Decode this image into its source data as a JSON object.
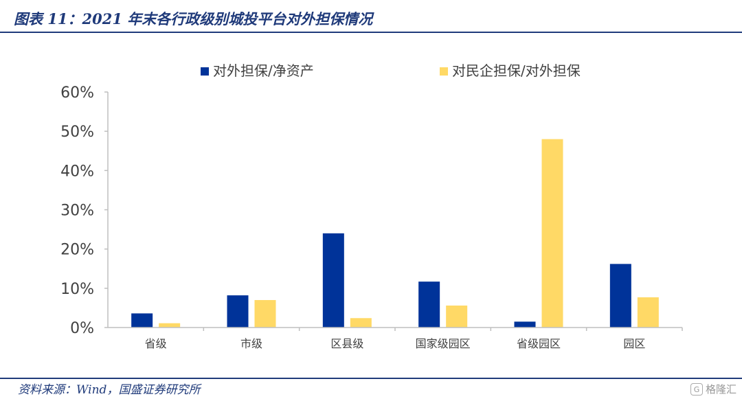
{
  "header": {
    "title": "图表 11：2021 年末各行政级别城投平台对外担保情况"
  },
  "footer": {
    "source": "资料来源：Wind，国盛证券研究所",
    "watermark": "格隆汇",
    "watermark_logo": "G"
  },
  "colors": {
    "series_1": "#003399",
    "series_2": "#ffd966",
    "axis": "#bfbfbf",
    "rule": "#1f3a7a"
  },
  "chart_data": {
    "type": "bar",
    "title": "",
    "xlabel": "",
    "ylabel": "",
    "ylim": [
      0,
      60
    ],
    "yticks": [
      0,
      10,
      20,
      30,
      40,
      50,
      60
    ],
    "ytick_suffix": "%",
    "grid": false,
    "legend_position": "top",
    "categories": [
      "省级",
      "市级",
      "区县级",
      "国家级园区",
      "省级园区",
      "园区"
    ],
    "series": [
      {
        "name": "对外担保/净资产",
        "values": [
          3.6,
          8.2,
          24.0,
          11.7,
          1.5,
          16.2
        ]
      },
      {
        "name": "对民企担保/对外担保",
        "values": [
          1.1,
          7.0,
          2.4,
          5.6,
          48.0,
          7.7
        ]
      }
    ]
  }
}
